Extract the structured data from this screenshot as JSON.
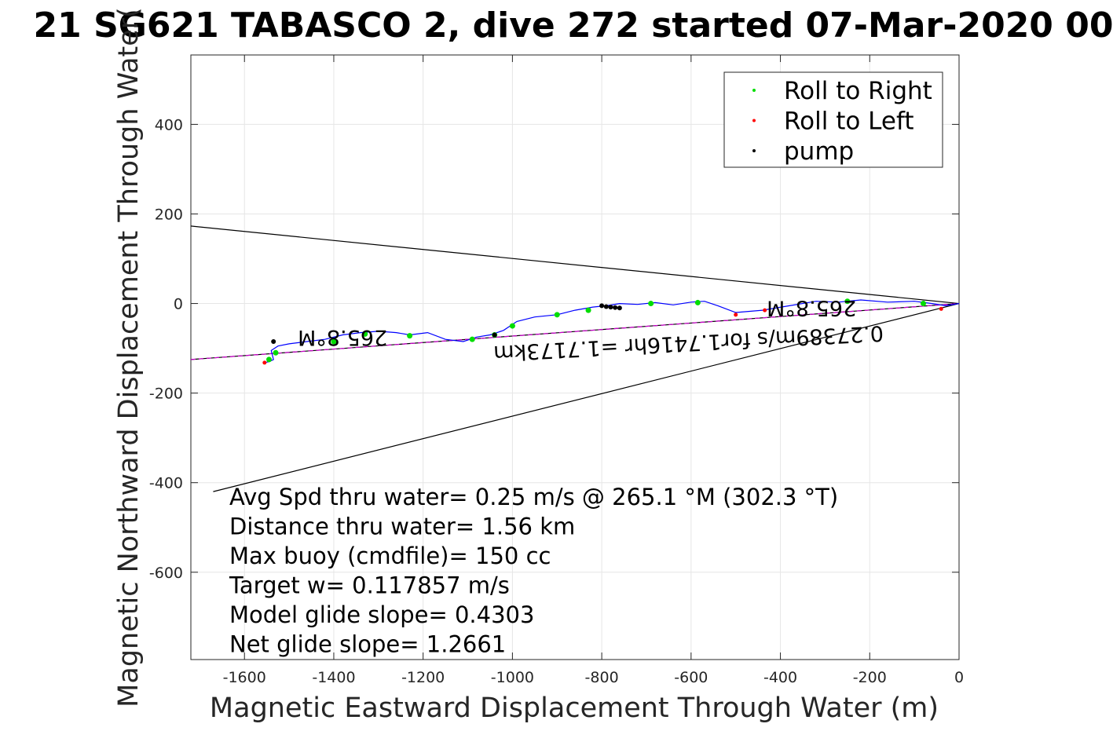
{
  "chart_data": {
    "type": "line",
    "title": "21 SG621 TABASCO 2, dive 272 started 07-Mar-2020 00",
    "xlabel": "Magnetic Eastward Displacement Through Water (m)",
    "ylabel": "Magnetic Northward Displacement Through Water(",
    "xlim": [
      -1720,
      0
    ],
    "ylim": [
      -795,
      555
    ],
    "xticks": [
      -1600,
      -1400,
      -1200,
      -1000,
      -800,
      -600,
      -400,
      -200,
      0
    ],
    "yticks": [
      -600,
      -400,
      -200,
      0,
      200,
      400
    ],
    "grid": true,
    "legend": {
      "placement": "top-right",
      "entries": [
        {
          "label": "Roll to Right",
          "color": "#00dd00"
        },
        {
          "label": "Roll to Left",
          "color": "#ff0000"
        },
        {
          "label": "pump",
          "color": "#000000"
        }
      ]
    },
    "colors": {
      "track": "#0000ff",
      "heading_line": "#cc00cc",
      "cone": "#000000",
      "axes": "#262626",
      "grid": "#e6e6e6"
    },
    "track": {
      "x": [
        0,
        -30,
        -60,
        -100,
        -160,
        -220,
        -270,
        -320,
        -380,
        -440,
        -500,
        -540,
        -570,
        -600,
        -640,
        -680,
        -720,
        -760,
        -790,
        -820,
        -860,
        -900,
        -950,
        -990,
        -1020,
        -1050,
        -1080,
        -1110,
        -1150,
        -1190,
        -1230,
        -1260,
        -1300,
        -1340,
        -1380,
        -1420,
        -1460,
        -1500,
        -1525,
        -1540,
        -1535,
        -1545,
        -1555
      ],
      "y": [
        0,
        -5,
        0,
        5,
        3,
        8,
        3,
        5,
        -5,
        -15,
        -20,
        -5,
        5,
        3,
        -3,
        2,
        -2,
        0,
        -5,
        -8,
        -15,
        -25,
        -30,
        -40,
        -60,
        -70,
        -75,
        -85,
        -80,
        -65,
        -70,
        -65,
        -62,
        -65,
        -70,
        -80,
        -85,
        -90,
        -95,
        -105,
        -125,
        -130,
        -132
      ]
    },
    "roll_right": {
      "x": [
        -80,
        -250,
        -585,
        -690,
        -830,
        -900,
        -1000,
        -1040,
        -1090,
        -1230,
        -1330,
        -1400,
        -1530,
        -1545
      ],
      "y": [
        0,
        5,
        2,
        0,
        -15,
        -25,
        -50,
        -70,
        -80,
        -72,
        -68,
        -85,
        -110,
        -125
      ]
    },
    "roll_left": {
      "x": [
        -40,
        -435,
        -500,
        -1555
      ],
      "y": [
        -12,
        -15,
        -25,
        -132
      ]
    },
    "pump": {
      "x": [
        -800,
        -790,
        -780,
        -770,
        -760,
        -1040,
        -1535
      ],
      "y": [
        -5,
        -7,
        -8,
        -9,
        -10,
        -70,
        -85
      ]
    },
    "heading_line": {
      "x": [
        -1720,
        0
      ],
      "y": [
        -125,
        0
      ]
    },
    "cone_upper": {
      "x": [
        -1720,
        0
      ],
      "y": [
        173,
        0
      ]
    },
    "cone_lower": {
      "x": [
        -1670,
        0
      ],
      "y": [
        -420,
        0
      ]
    },
    "annotations": [
      {
        "text": "265.8°M",
        "x": -230,
        "y": 5,
        "rotate": 180
      },
      {
        "text": "265.8°M",
        "x": -1280,
        "y": -60,
        "rotate": 180
      },
      {
        "text": "0.27389m/s for1.7416hr =1.7173km",
        "x": -170,
        "y": -50,
        "rotate": 177
      }
    ],
    "stats": [
      "Avg Spd thru water=  0.25 m/s @ 265.1 °M (302.3 °T)",
      "Distance thru water=  1.56 km",
      "Max buoy (cmdfile)= 150 cc",
      "Target w= 0.117857 m/s",
      "Model glide slope= 0.4303",
      "Net glide slope= 1.2661"
    ]
  }
}
